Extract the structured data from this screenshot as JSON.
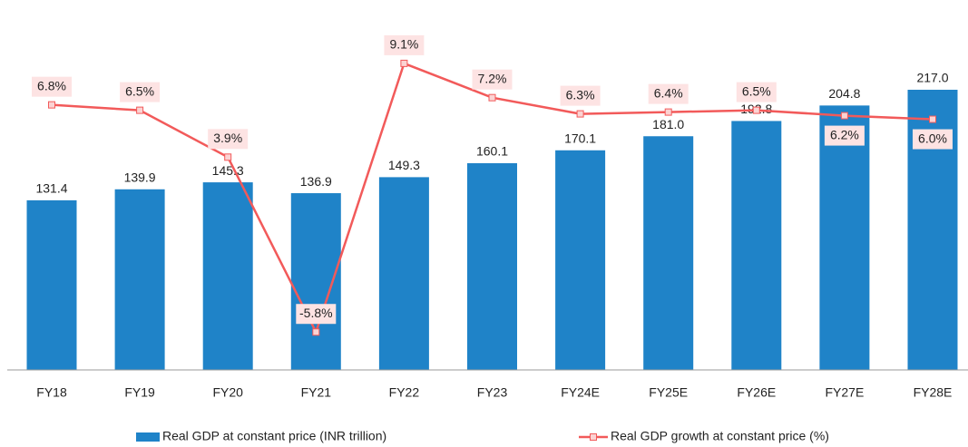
{
  "chart_data": {
    "type": "bar_line",
    "categories": [
      "FY18",
      "FY19",
      "FY20",
      "FY21",
      "FY22",
      "FY23",
      "FY24E",
      "FY25E",
      "FY26E",
      "FY27E",
      "FY28E"
    ],
    "series": [
      {
        "name": "Real GDP at constant price (INR trillion)",
        "type": "bar",
        "color": "#1f83c8",
        "values": [
          131.4,
          139.9,
          145.3,
          136.9,
          149.3,
          160.1,
          170.1,
          181.0,
          192.8,
          204.8,
          217.0
        ],
        "value_labels": [
          "131.4",
          "139.9",
          "145.3",
          "136.9",
          "149.3",
          "160.1",
          "170.1",
          "181.0",
          "192.8",
          "204.8",
          "217.0"
        ]
      },
      {
        "name": "Real GDP growth at constant price (%)",
        "type": "line",
        "axis": "y2",
        "color": "#f25a5a",
        "values": [
          6.8,
          6.5,
          3.9,
          -5.8,
          9.1,
          7.2,
          6.3,
          6.4,
          6.5,
          6.2,
          6.0
        ],
        "value_labels": [
          "6.8%",
          "6.5%",
          "3.9%",
          "-5.8%",
          "9.1%",
          "7.2%",
          "6.3%",
          "6.4%",
          "6.5%",
          "6.2%",
          "6.0%"
        ]
      }
    ],
    "ylim": [
      0,
      250
    ],
    "y2lim": [
      -7.9,
      10
    ],
    "legend": "bottom"
  }
}
